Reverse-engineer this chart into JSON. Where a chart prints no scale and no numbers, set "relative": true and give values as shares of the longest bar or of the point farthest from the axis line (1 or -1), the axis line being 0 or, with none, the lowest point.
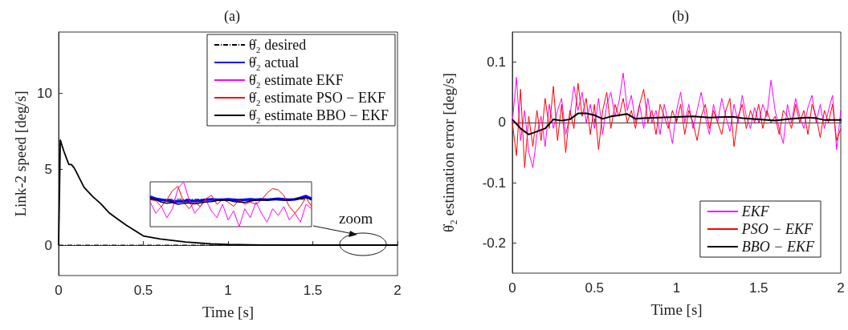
{
  "chart_data": [
    {
      "type": "line",
      "title": "(a)",
      "xlabel": "Time [s]",
      "ylabel": "Link-2 speed [deg/s]",
      "xlim": [
        0,
        2
      ],
      "xticks": [
        0,
        0.5,
        1,
        1.5,
        2
      ],
      "ylim": [
        -2,
        14
      ],
      "yticks": [
        0,
        5,
        10
      ],
      "legend": "top right",
      "annotations": [
        "zoom"
      ],
      "series": [
        {
          "name": "θ̇₂ desired",
          "color": "#000000",
          "line_style": "dashed",
          "x": [
            0,
            2
          ],
          "values": [
            0,
            0
          ]
        },
        {
          "name": "θ̇₂ actual",
          "color": "#0000ff"
        },
        {
          "name": "θ̇₂ estimate EKF",
          "color": "#ff00ff"
        },
        {
          "name": "θ̇₂ estimate PSO − EKF",
          "color": "#ff0000"
        },
        {
          "name": "θ̇₂ estimate BBO − EKF",
          "color": "#000000",
          "x": [
            0,
            0.01,
            0.03,
            0.05,
            0.06,
            0.075,
            0.09,
            0.1,
            0.15,
            0.2,
            0.25,
            0.3,
            0.35,
            0.4,
            0.5,
            0.6,
            0.75,
            0.9,
            1,
            1.2,
            1.5,
            2
          ],
          "values": [
            0,
            6.9,
            6.2,
            5.6,
            5.3,
            5.3,
            5.1,
            4.9,
            3.8,
            3.2,
            2.7,
            2.1,
            1.7,
            1.3,
            0.6,
            0.4,
            0.2,
            0.08,
            0.04,
            0.01,
            0,
            0
          ]
        }
      ]
    },
    {
      "type": "line",
      "relative": true,
      "categories": [
        null,
        null,
        null,
        null,
        null,
        null,
        null,
        null,
        null,
        null,
        null,
        null,
        null,
        null,
        null,
        null,
        null,
        null,
        null,
        null,
        null,
        null,
        null,
        null,
        null,
        null,
        null,
        null,
        null,
        null
      ],
      "series": [
        {
          "color": "#000000",
          "line_style": "dashed",
          "values": [
            0.61,
            0.61,
            0.61,
            0.61,
            0.61,
            0.61,
            0.61,
            0.61,
            0.61,
            0.61,
            0.61,
            0.61,
            0.61,
            0.61,
            0.61,
            0.61,
            0.61,
            0.61,
            0.61,
            0.61,
            0.61,
            0.61,
            0.61,
            0.61,
            0.61,
            0.61,
            0.61,
            0.61,
            0.61,
            0.61
          ]
        },
        {
          "color": "#0000ff",
          "values": [
            0.67,
            0.62,
            0.6,
            0.58,
            0.57,
            0.56,
            0.57,
            0.58,
            0.57,
            0.58,
            0.6,
            0.61,
            0.6,
            0.6,
            0.61,
            0.6,
            0.59,
            0.6,
            0.61,
            0.6,
            0.61,
            0.6,
            0.61,
            0.62,
            0.61,
            0.6,
            0.61,
            0.64,
            0.68,
            0.62
          ]
        },
        {
          "color": "#ff00ff",
          "values": [
            0.55,
            0.3,
            0.45,
            0.2,
            0.4,
            0.85,
            1,
            0.6,
            0.3,
            0.45,
            0.6,
            0.35,
            0.2,
            0.5,
            0.15,
            0.35,
            0,
            0.4,
            0.2,
            0.55,
            0.3,
            0.1,
            0.4,
            0.25,
            0.45,
            0.15,
            0.3,
            0.1,
            0.5,
            0.4
          ]
        },
        {
          "color": "#ff0000",
          "values": [
            0.6,
            0.58,
            0.45,
            0.6,
            0.8,
            0.9,
            0.55,
            0.4,
            0.55,
            0.45,
            0.62,
            0.7,
            0.5,
            0.6,
            0.55,
            0.45,
            0.6,
            0.5,
            0.55,
            0.5,
            0.6,
            0.75,
            0.85,
            0.82,
            0.7,
            0.45,
            0.3,
            0.45,
            0.65,
            0.45
          ]
        },
        {
          "color": "#000000",
          "values": [
            0.63,
            0.6,
            0.55,
            0.52,
            0.54,
            0.5,
            0.52,
            0.53,
            0.51,
            0.53,
            0.55,
            0.56,
            0.58,
            0.6,
            0.59,
            0.56,
            0.55,
            0.54,
            0.57,
            0.59,
            0.6,
            0.59,
            0.61,
            0.6,
            0.59,
            0.6,
            0.61,
            0.63,
            0.65,
            0.6
          ]
        }
      ]
    },
    {
      "type": "line",
      "title": "(b)",
      "xlabel": "Time [s]",
      "ylabel": "θ̇₂ estimation error [deg/s]",
      "xlim": [
        0,
        2
      ],
      "xticks": [
        0,
        0.5,
        1,
        1.5,
        2
      ],
      "ylim": [
        -0.25,
        0.15
      ],
      "yticks": [
        -0.2,
        -0.1,
        0,
        0.1
      ],
      "legend": "bottom right",
      "x": [
        0,
        0.025,
        0.05,
        0.075,
        0.1,
        0.125,
        0.15,
        0.175,
        0.2,
        0.225,
        0.25,
        0.275,
        0.3,
        0.325,
        0.35,
        0.375,
        0.4,
        0.425,
        0.45,
        0.475,
        0.5,
        0.525,
        0.55,
        0.575,
        0.6,
        0.625,
        0.65,
        0.675,
        0.7,
        0.725,
        0.75,
        0.775,
        0.8,
        0.825,
        0.85,
        0.875,
        0.9,
        0.925,
        0.95,
        0.975,
        1,
        1.025,
        1.05,
        1.075,
        1.1,
        1.125,
        1.15,
        1.175,
        1.2,
        1.225,
        1.25,
        1.275,
        1.3,
        1.325,
        1.35,
        1.375,
        1.4,
        1.425,
        1.45,
        1.475,
        1.5,
        1.525,
        1.55,
        1.575,
        1.6,
        1.625,
        1.65,
        1.675,
        1.7,
        1.725,
        1.75,
        1.775,
        1.8,
        1.825,
        1.85,
        1.875,
        1.9,
        1.925,
        1.95,
        1.975,
        2
      ],
      "series": [
        {
          "name": "EKF",
          "color": "#ff00ff",
          "values": [
            0,
            0.075,
            -0.03,
            0.02,
            -0.05,
            -0.075,
            -0.02,
            0.01,
            -0.04,
            0.03,
            -0.01,
            0.02,
            0.04,
            -0.02,
            0.01,
            0.06,
            0.02,
            0.05,
            0,
            0.03,
            -0.01,
            0.04,
            -0.02,
            0.03,
            0.05,
            0.01,
            0.035,
            0.082,
            0.02,
            0.045,
            0,
            0.03,
            -0.01,
            0.04,
            0,
            0.02,
            -0.02,
            0.03,
            0,
            -0.035,
            0.02,
            0.05,
            0,
            0.03,
            -0.01,
            0.02,
            0.05,
            0.01,
            -0.02,
            0.03,
            0,
            0.04,
            0.01,
            -0.015,
            0.03,
            0,
            0.045,
            0.01,
            -0.01,
            0.025,
            0,
            0.03,
            0.01,
            0.07,
            0.02,
            -0.01,
            -0.035,
            0.03,
            0,
            0.04,
            0.01,
            -0.01,
            0.025,
            0.045,
            0,
            0.03,
            -0.01,
            0.02,
            0.045,
            -0.045,
            0.02
          ]
        },
        {
          "name": "PSO − EKF",
          "color": "#ff0000",
          "values": [
            0,
            -0.055,
            0.055,
            -0.075,
            0.01,
            -0.04,
            0.02,
            -0.03,
            0.04,
            -0.01,
            0.06,
            -0.03,
            0.03,
            -0.05,
            0.02,
            -0.01,
            0.065,
            0.01,
            0.04,
            -0.02,
            0.03,
            -0.045,
            0.02,
            0.05,
            -0.01,
            0.03,
            0.01,
            0.04,
            0,
            0.02,
            -0.01,
            0.03,
            0.055,
            0,
            0.02,
            -0.02,
            0.03,
            0.01,
            -0.01,
            0.02,
            0,
            0.03,
            -0.02,
            0.02,
            0,
            -0.03,
            0.01,
            0.03,
            -0.01,
            0.02,
            0,
            -0.02,
            0.02,
            0.04,
            -0.04,
            0.01,
            0.03,
            -0.01,
            0.02,
            0,
            0.03,
            -0.01,
            0.02,
            0,
            0.01,
            -0.02,
            0.02,
            0.01,
            -0.01,
            0.03,
            0,
            0.02,
            -0.02,
            0.03,
            0.01,
            -0.025,
            0.02,
            0,
            0.03,
            -0.03,
            -0.01
          ]
        },
        {
          "name": "BBO − EKF",
          "color": "#000000",
          "x": [
            0,
            0.05,
            0.1,
            0.15,
            0.2,
            0.25,
            0.3,
            0.35,
            0.4,
            0.45,
            0.5,
            0.55,
            0.6,
            0.7,
            0.75,
            0.8,
            0.9,
            1,
            1.1,
            1.2,
            1.3,
            1.35,
            1.4,
            1.5,
            1.6,
            1.7,
            1.8,
            1.85,
            1.9,
            2
          ],
          "values": [
            0.005,
            -0.01,
            -0.02,
            -0.015,
            -0.01,
            0.005,
            0.003,
            0.005,
            0.015,
            0.015,
            0.012,
            0.006,
            0.01,
            0.014,
            0.006,
            0.007,
            0.008,
            0.009,
            0.01,
            0.008,
            0.009,
            0.009,
            0.007,
            0.005,
            0.003,
            0.006,
            0.008,
            0.007,
            0.004,
            0.004
          ]
        }
      ]
    }
  ]
}
